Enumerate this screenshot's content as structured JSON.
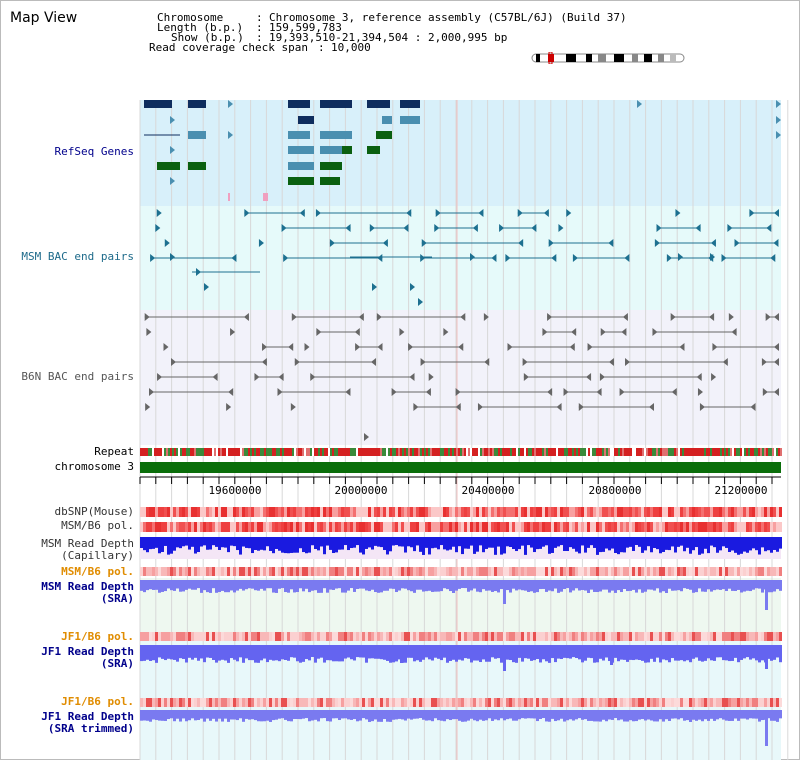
{
  "app": {
    "title": "Map View"
  },
  "header": {
    "chromosome_key": "Chromosome",
    "chromosome_value": "Chromosome 3, reference assembly (C57BL/6J) (Build 37)",
    "length_key": "Length (b.p.)",
    "length_value": "159,599,783",
    "show_key": "Show (b.p.)",
    "show_value": "19,393,510-21,394,504 : 2,000,995 bp",
    "coverage_key": "Read coverage check span",
    "coverage_value": "10,000"
  },
  "tracks": {
    "refseq": "RefSeq Genes",
    "msm_bac": "MSM BAC end pairs",
    "b6n_bac": "B6N BAC end pairs",
    "repeat": "Repeat",
    "chromosome": "chromosome 3",
    "dbsnp": "dbSNP(Mouse)",
    "msm_b6_pol": "MSM/B6 pol.",
    "msm_depth_cap_1": "MSM Read Depth",
    "msm_depth_cap_2": "(Capillary)",
    "msm_b6_pol_2": "MSM/B6 pol.",
    "msm_depth_sra_1": "MSM Read Depth",
    "msm_depth_sra_2": "(SRA)",
    "jf1_b6_pol": "JF1/B6 pol.",
    "jf1_depth_sra_1": "JF1 Read Depth",
    "jf1_depth_sra_2": "(SRA)",
    "jf1_b6_pol_2": "JF1/B6 pol.",
    "jf1_depth_trim_1": "JF1 Read Depth",
    "jf1_depth_trim_2": "(SRA trimmed)"
  },
  "ruler": {
    "ticks": [
      "19600000",
      "20000000",
      "20400000",
      "20800000",
      "21200000"
    ]
  },
  "colors": {
    "refseq_bg": "#d8f0fa",
    "msm_bg": "#e6fafa",
    "b6n_bg": "#f2f2fa",
    "gene_dark": "#0e2d5e",
    "gene_mid": "#4a8fb0",
    "gene_green": "#0a6010",
    "bac_msm": "#1d7090",
    "bac_b6n": "#666666",
    "chrom_green": "#0a6e0a",
    "label_blue": "#00008b",
    "label_teal": "#1d6a8a",
    "label_orange": "#e08c00"
  }
}
